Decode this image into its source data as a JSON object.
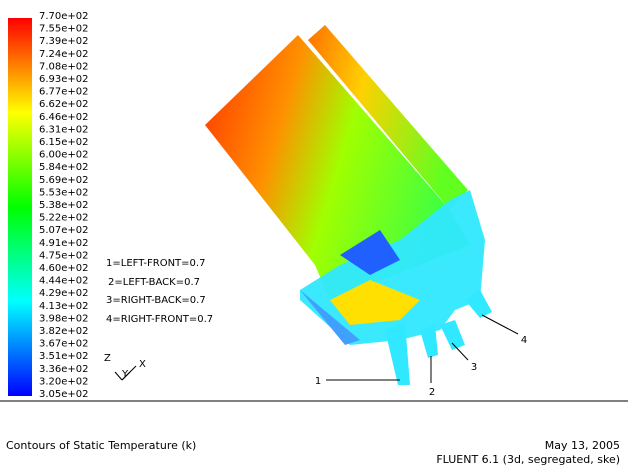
{
  "colorbar": {
    "labels": [
      "7.70e+02",
      "7.55e+02",
      "7.39e+02",
      "7.24e+02",
      "7.08e+02",
      "6.93e+02",
      "6.77e+02",
      "6.62e+02",
      "6.46e+02",
      "6.31e+02",
      "6.15e+02",
      "6.00e+02",
      "5.84e+02",
      "5.69e+02",
      "5.53e+02",
      "5.38e+02",
      "5.22e+02",
      "5.07e+02",
      "4.91e+02",
      "4.75e+02",
      "4.60e+02",
      "4.44e+02",
      "4.29e+02",
      "4.13e+02",
      "3.98e+02",
      "3.82e+02",
      "3.67e+02",
      "3.51e+02",
      "3.36e+02",
      "3.20e+02",
      "3.05e+02"
    ]
  },
  "notes": [
    "1=LEFT-FRONT=0.7",
    "2=LEFT-BACK=0.7",
    "3=RIGHT-BACK=0.7",
    "4=RIGHT-FRONT=0.7"
  ],
  "callouts": [
    "1",
    "2",
    "3",
    "4"
  ],
  "axes": [
    "Z",
    "Y",
    "X"
  ],
  "footer": {
    "title": "Contours of Static Temperature (k)",
    "date": "May 13, 2005",
    "solver": "FLUENT 6.1 (3d, segregated, ske)"
  }
}
